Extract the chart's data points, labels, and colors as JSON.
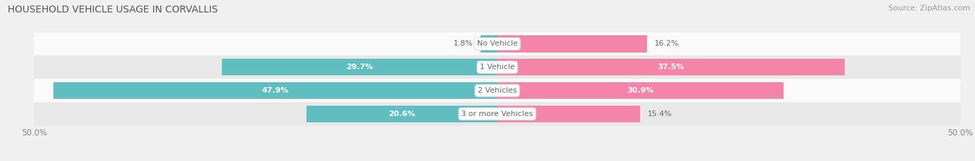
{
  "title": "HOUSEHOLD VEHICLE USAGE IN CORVALLIS",
  "source": "Source: ZipAtlas.com",
  "categories": [
    "No Vehicle",
    "1 Vehicle",
    "2 Vehicles",
    "3 or more Vehicles"
  ],
  "owner_values": [
    1.8,
    29.7,
    47.9,
    20.6
  ],
  "renter_values": [
    16.2,
    37.5,
    30.9,
    15.4
  ],
  "owner_color": "#60bec0",
  "renter_color": "#f585a8",
  "xlim": [
    -50,
    50
  ],
  "xticks": [
    -50,
    50
  ],
  "xticklabels": [
    "50.0%",
    "50.0%"
  ],
  "bar_height": 0.72,
  "background_color": "#f0f0f0",
  "row_bg_colors": [
    "#fafafa",
    "#e8e8e8",
    "#fafafa",
    "#e8e8e8"
  ],
  "title_fontsize": 10,
  "source_fontsize": 8,
  "label_fontsize": 8,
  "category_fontsize": 8,
  "legend_fontsize": 8.5,
  "axis_fontsize": 8.5
}
